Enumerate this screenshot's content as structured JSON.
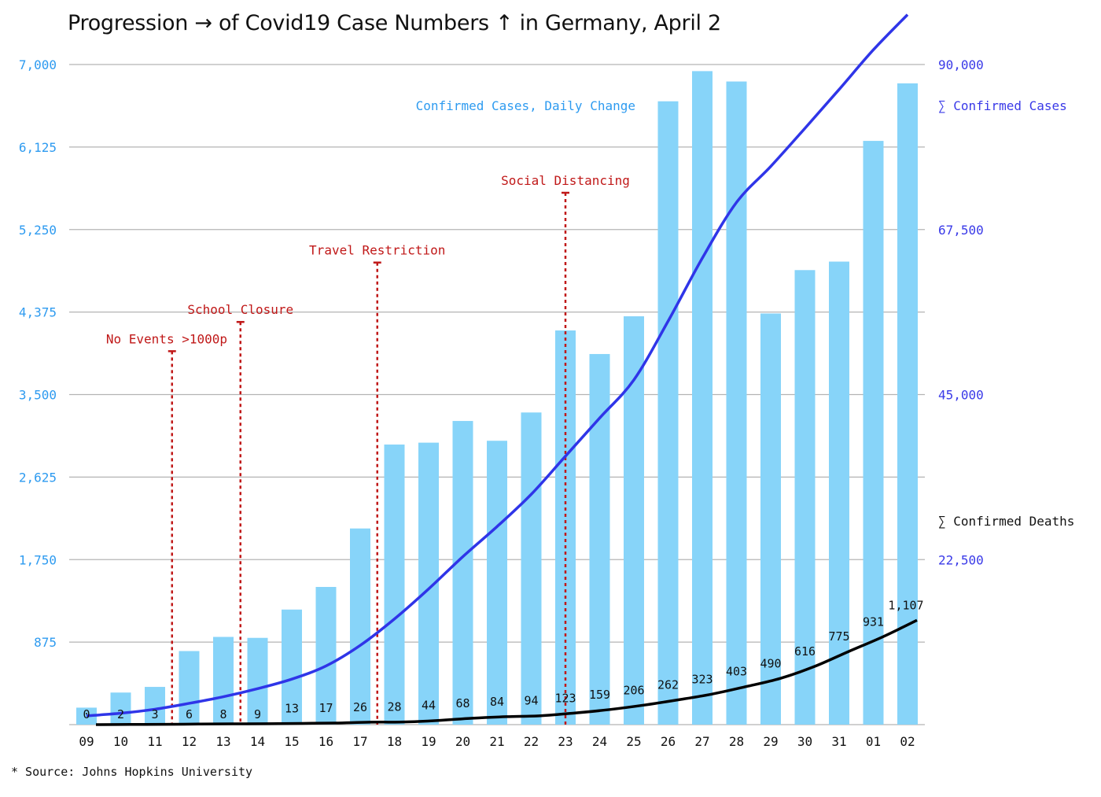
{
  "title": "Progression → of Covid19 Case Numbers ↑ in Germany, April 2",
  "source": "* Source: Johns Hopkins University",
  "colors": {
    "bars": "#87d4f9",
    "cases_line": "#2f35e8",
    "deaths_line": "#000000",
    "left_axis": "#2e9bf0",
    "right_axis": "#3a3ae8",
    "events": "#c01818",
    "grid": "#b4b4b4"
  },
  "chart_data": {
    "type": "bar",
    "categories": [
      "09",
      "10",
      "11",
      "12",
      "13",
      "14",
      "15",
      "16",
      "17",
      "18",
      "19",
      "20",
      "21",
      "22",
      "23",
      "24",
      "25",
      "26",
      "27",
      "28",
      "29",
      "30",
      "31",
      "01",
      "02"
    ],
    "left_axis": {
      "ylim": [
        0,
        7000
      ],
      "ticks": [
        875,
        1750,
        2625,
        3500,
        4375,
        5250,
        6125,
        7000
      ],
      "tick_labels": [
        "875",
        "1,750",
        "2,625",
        "3,500",
        "4,375",
        "5,250",
        "6,125",
        "7,000"
      ]
    },
    "right_axis": {
      "ylim": [
        0,
        90000
      ],
      "ticks": [
        22500,
        45000,
        67500,
        90000
      ],
      "tick_labels": [
        "22,500",
        "45,000",
        "67,500",
        "90,000"
      ]
    },
    "grid": true,
    "series": [
      {
        "name": "Confirmed Cases, Daily Change",
        "type": "bar",
        "axis": "left",
        "values": [
          180,
          340,
          400,
          780,
          930,
          920,
          1220,
          1460,
          2080,
          2970,
          2990,
          3220,
          3010,
          3310,
          4180,
          3930,
          4330,
          6610,
          6930,
          6820,
          4360,
          4820,
          4910,
          6190,
          6800
        ]
      },
      {
        "name": "∑ Confirmed Cases",
        "type": "line",
        "axis": "right",
        "values": [
          1200,
          1550,
          2100,
          2900,
          3800,
          4900,
          6200,
          8000,
          10800,
          14400,
          18500,
          22900,
          27000,
          31400,
          36600,
          41800,
          47000,
          55000,
          63600,
          71200,
          76100,
          81300,
          86600,
          92000,
          96800
        ]
      },
      {
        "name": "∑ Confirmed Deaths",
        "type": "line",
        "axis": "left",
        "values": [
          0,
          2,
          3,
          6,
          8,
          9,
          13,
          17,
          26,
          28,
          44,
          68,
          84,
          94,
          123,
          159,
          206,
          262,
          323,
          403,
          490,
          616,
          775,
          931,
          1107
        ],
        "data_labels": [
          "0",
          "2",
          "3",
          "6",
          "8",
          "9",
          "13",
          "17",
          "26",
          "28",
          "44",
          "68",
          "84",
          "94",
          "123",
          "159",
          "206",
          "262",
          "323",
          "403",
          "490",
          "616",
          "775",
          "931",
          "1,107"
        ]
      }
    ],
    "series_labels": {
      "daily": "Confirmed Cases, Daily Change",
      "cases": "∑ Confirmed Cases",
      "deaths": "∑ Confirmed Deaths"
    },
    "events": [
      {
        "label": "No Events >1000p",
        "between": [
          "11",
          "12"
        ],
        "level": 3960
      },
      {
        "label": "School Closure",
        "between": [
          "13",
          "14"
        ],
        "level": 4270
      },
      {
        "label": "Travel Restriction",
        "between": [
          "17",
          "18"
        ],
        "level": 4900
      },
      {
        "label": "Social Distancing",
        "at": "23",
        "level": 5640
      }
    ]
  }
}
